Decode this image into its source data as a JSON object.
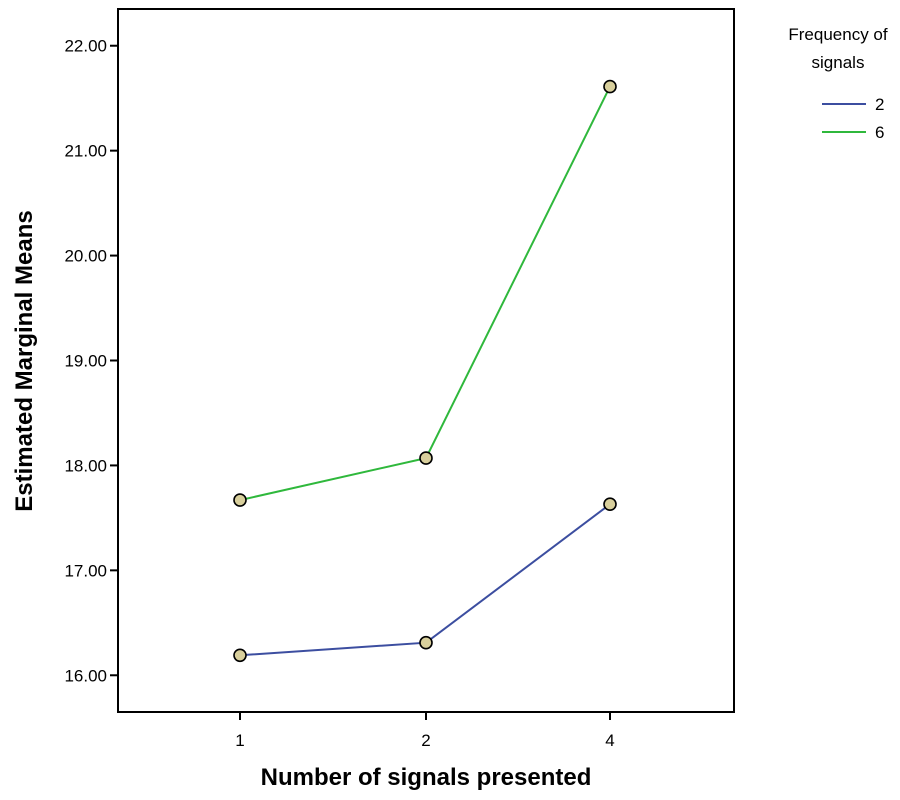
{
  "chart_data": {
    "type": "line",
    "title": "",
    "xlabel": "Number of signals presented",
    "ylabel": "Estimated Marginal Means",
    "categories": [
      "1",
      "2",
      "4"
    ],
    "ylim": [
      15.65,
      22.35
    ],
    "yticks": [
      "16.00",
      "17.00",
      "18.00",
      "19.00",
      "20.00",
      "21.00",
      "22.00"
    ],
    "grid": false,
    "legend": {
      "title_lines": [
        "Frequency of",
        "signals"
      ],
      "placement": "right"
    },
    "series": [
      {
        "name": "2",
        "color": "#3c4ea0",
        "values": [
          16.19,
          16.31,
          17.63
        ]
      },
      {
        "name": "6",
        "color": "#2fb83c",
        "values": [
          17.67,
          18.07,
          21.61
        ]
      }
    ],
    "marker": {
      "fill": "#d8cf9c",
      "stroke": "#000000"
    }
  }
}
